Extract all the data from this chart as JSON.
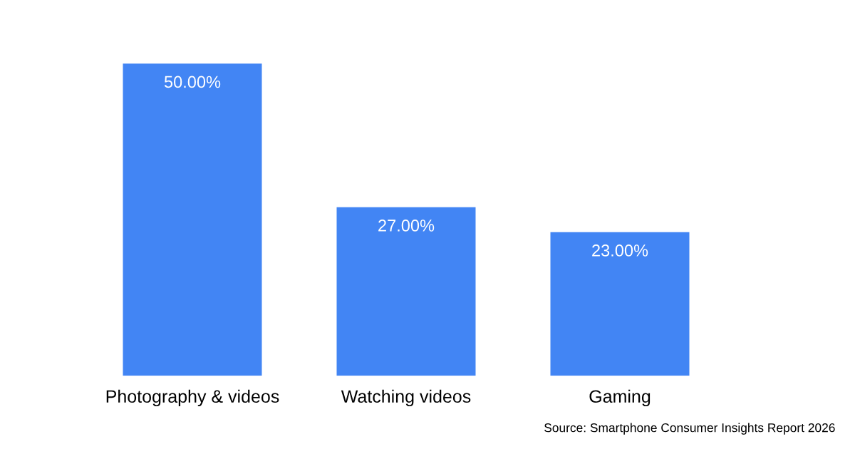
{
  "chart_data": {
    "type": "bar",
    "categories": [
      "Photography & videos",
      "Watching videos",
      "Gaming"
    ],
    "values": [
      50,
      27,
      23
    ],
    "value_labels": [
      "50.00%",
      "27.00%",
      "23.00%"
    ],
    "color": "#4285f4",
    "grid": false,
    "legend": false,
    "annotations": [
      "Source: Smartphone Consumer Insights Report 2026"
    ]
  }
}
